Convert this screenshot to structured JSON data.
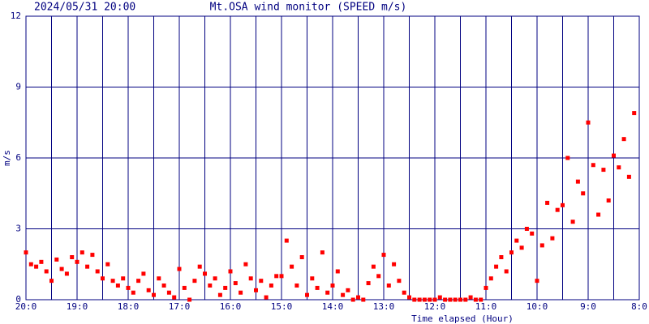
{
  "chart_data": {
    "type": "scatter",
    "timestamp": "2024/05/31 20:00",
    "title": "Mt.OSA wind monitor (SPEED m/s)",
    "xlabel": "Time elapsed (Hour)",
    "ylabel": "m/s",
    "xlim": [
      0,
      12
    ],
    "ylim": [
      0,
      12
    ],
    "xticks": [
      {
        "value": 0,
        "label": "20:0"
      },
      {
        "value": 1,
        "label": "19:0"
      },
      {
        "value": 2,
        "label": "18:0"
      },
      {
        "value": 3,
        "label": "17:0"
      },
      {
        "value": 4,
        "label": "16:0"
      },
      {
        "value": 5,
        "label": "15:0"
      },
      {
        "value": 6,
        "label": "14:0"
      },
      {
        "value": 7,
        "label": "13:0"
      },
      {
        "value": 8,
        "label": "12:0"
      },
      {
        "value": 9,
        "label": "11:0"
      },
      {
        "value": 10,
        "label": "10:0"
      },
      {
        "value": 11,
        "label": "9:0"
      },
      {
        "value": 12,
        "label": "8:0"
      }
    ],
    "yticks": [
      0,
      3,
      6,
      9,
      12
    ],
    "grid": true,
    "grid_color": "#000080",
    "series": [
      {
        "name": "SPEED",
        "color": "#ff0000",
        "x": [
          0,
          0.1,
          0.2,
          0.3,
          0.4,
          0.5,
          0.6,
          0.7,
          0.8,
          0.9,
          1,
          1.1,
          1.2,
          1.3,
          1.4,
          1.5,
          1.6,
          1.7,
          1.8,
          1.9,
          2,
          2.1,
          2.2,
          2.3,
          2.4,
          2.5,
          2.6,
          2.7,
          2.8,
          2.9,
          3,
          3.1,
          3.2,
          3.3,
          3.4,
          3.5,
          3.6,
          3.7,
          3.8,
          3.9,
          4,
          4.1,
          4.2,
          4.3,
          4.4,
          4.5,
          4.6,
          4.7,
          4.8,
          4.9,
          5,
          5.1,
          5.2,
          5.3,
          5.4,
          5.5,
          5.6,
          5.7,
          5.8,
          5.9,
          6,
          6.1,
          6.2,
          6.3,
          6.4,
          6.5,
          6.6,
          6.7,
          6.8,
          6.9,
          7,
          7.1,
          7.2,
          7.3,
          7.4,
          7.5,
          7.6,
          7.7,
          7.8,
          7.9,
          8,
          8.1,
          8.2,
          8.3,
          8.4,
          8.5,
          8.6,
          8.7,
          8.8,
          8.9,
          9,
          9.1,
          9.2,
          9.3,
          9.4,
          9.5,
          9.6,
          9.7,
          9.8,
          9.9,
          10,
          10.1,
          10.2,
          10.3,
          10.4,
          10.5,
          10.6,
          10.7,
          10.8,
          10.9,
          11,
          11.1,
          11.2,
          11.3,
          11.4,
          11.5,
          11.6,
          11.7,
          11.8,
          11.9
        ],
        "values": [
          2.0,
          1.5,
          1.4,
          1.6,
          1.2,
          0.8,
          1.7,
          1.3,
          1.1,
          1.8,
          1.6,
          2.0,
          1.4,
          1.9,
          1.2,
          0.9,
          1.5,
          0.8,
          0.6,
          0.9,
          0.5,
          0.3,
          0.8,
          1.1,
          0.4,
          0.2,
          0.9,
          0.6,
          0.3,
          0.1,
          1.3,
          0.5,
          0.0,
          0.8,
          1.4,
          1.1,
          0.6,
          0.9,
          0.2,
          0.5,
          1.2,
          0.7,
          0.3,
          1.5,
          0.9,
          0.4,
          0.8,
          0.1,
          0.6,
          1.0,
          1.0,
          2.5,
          1.4,
          0.6,
          1.8,
          0.2,
          0.9,
          0.5,
          2.0,
          0.3,
          0.6,
          1.2,
          0.2,
          0.4,
          0.0,
          0.1,
          0.0,
          0.7,
          1.4,
          1.0,
          1.9,
          0.6,
          1.5,
          0.8,
          0.3,
          0.1,
          0.0,
          0.0,
          0.0,
          0.0,
          0.0,
          0.1,
          0.0,
          0.0,
          0.0,
          0.0,
          0.0,
          0.1,
          0.0,
          0.0,
          0.5,
          0.9,
          1.4,
          1.8,
          1.2,
          2.0,
          2.5,
          2.2,
          3.0,
          2.8,
          0.8,
          2.3,
          4.1,
          2.6,
          3.8,
          4.0,
          6.0,
          3.3,
          5.0,
          4.5,
          7.5,
          5.7,
          3.6,
          5.5,
          4.2,
          6.1,
          5.6,
          6.8,
          5.2,
          7.9
        ]
      }
    ]
  }
}
